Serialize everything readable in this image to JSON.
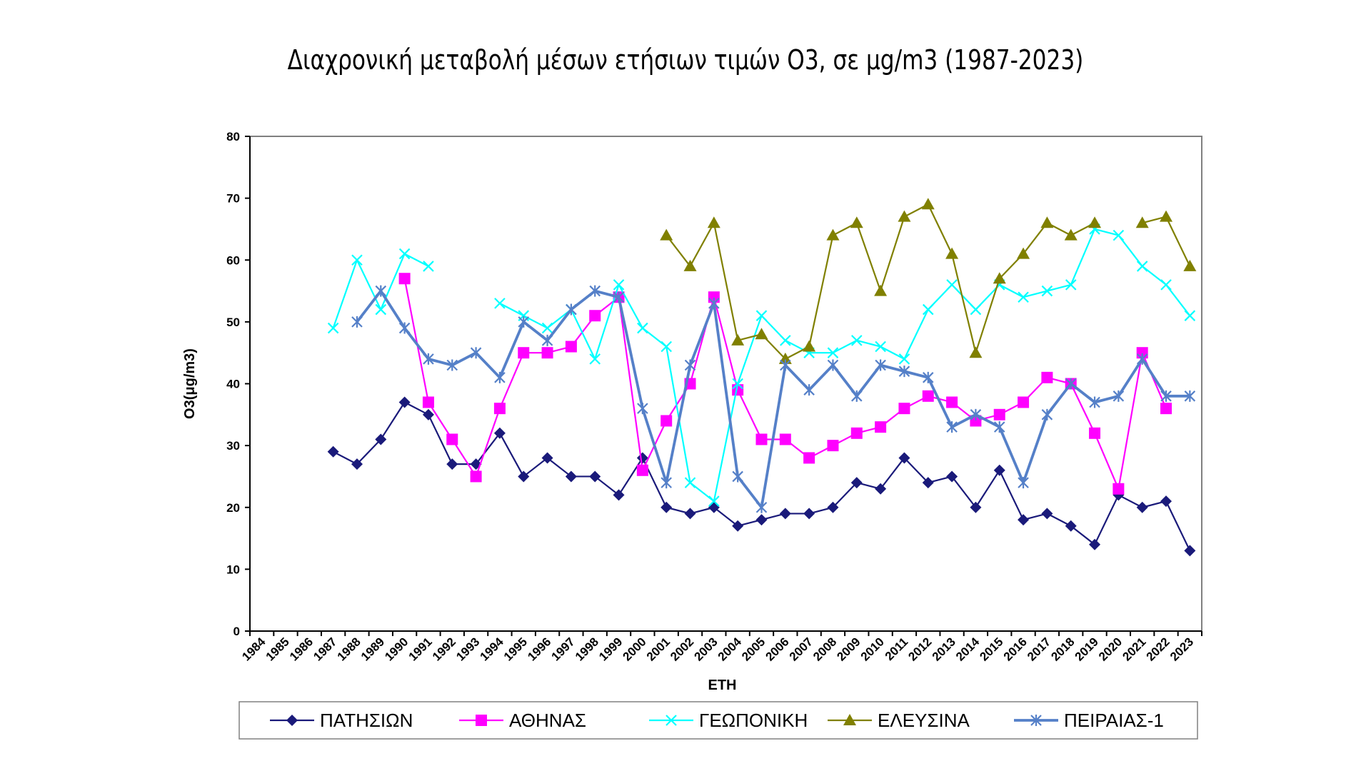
{
  "title": "Διαχρονική μεταβολή μέσων ετήσιων τιμών O3, σε μg/m3 (1987-2023)",
  "chart_data": {
    "type": "line",
    "title": "Διαχρονική μεταβολή μέσων ετήσιων τιμών O3, σε μg/m3 (1987-2023)",
    "xlabel": "ΕΤΗ",
    "ylabel": "O3(μg/m3)",
    "ylim": [
      0,
      80
    ],
    "yticks": [
      "0",
      "10",
      "20",
      "30",
      "40",
      "50",
      "60",
      "70",
      "80"
    ],
    "grid": false,
    "legend_position": "bottom",
    "categories": [
      "1984",
      "1985",
      "1986",
      "1987",
      "1988",
      "1989",
      "1990",
      "1991",
      "1992",
      "1993",
      "1994",
      "1995",
      "1996",
      "1997",
      "1998",
      "1999",
      "2000",
      "2001",
      "2002",
      "2003",
      "2004",
      "2005",
      "2006",
      "2007",
      "2008",
      "2009",
      "2010",
      "2011",
      "2012",
      "2013",
      "2014",
      "2015",
      "2016",
      "2017",
      "2018",
      "2019",
      "2020",
      "2021",
      "2022",
      "2023"
    ],
    "series": [
      {
        "name": "ΠΑΤΗΣΙΩΝ",
        "color": "#1a1a7a",
        "marker": "diamond",
        "values": [
          null,
          null,
          null,
          29,
          27,
          31,
          37,
          35,
          27,
          27,
          32,
          25,
          28,
          25,
          25,
          22,
          28,
          20,
          19,
          20,
          17,
          18,
          19,
          19,
          20,
          24,
          23,
          28,
          24,
          25,
          20,
          26,
          18,
          19,
          17,
          14,
          22,
          20,
          21,
          13
        ]
      },
      {
        "name": "ΑΘΗΝΑΣ",
        "color": "#ff00ff",
        "marker": "square",
        "values": [
          null,
          null,
          null,
          null,
          null,
          null,
          57,
          37,
          31,
          25,
          36,
          45,
          45,
          46,
          51,
          54,
          26,
          34,
          40,
          54,
          39,
          31,
          31,
          28,
          30,
          32,
          33,
          36,
          38,
          37,
          34,
          35,
          37,
          41,
          40,
          32,
          23,
          45,
          36,
          null
        ]
      },
      {
        "name": "ΓΕΩΠΟΝΙΚΗ",
        "color": "#00ffff",
        "marker": "x",
        "values": [
          null,
          null,
          null,
          49,
          60,
          52,
          61,
          59,
          null,
          null,
          53,
          51,
          49,
          52,
          44,
          56,
          49,
          46,
          24,
          21,
          40,
          51,
          47,
          45,
          45,
          47,
          46,
          44,
          52,
          56,
          52,
          56,
          54,
          55,
          56,
          65,
          64,
          59,
          56,
          51
        ]
      },
      {
        "name": "ΕΛΕΥΣΙΝΑ",
        "color": "#808000",
        "marker": "triangle",
        "values": [
          null,
          null,
          null,
          null,
          null,
          null,
          null,
          null,
          null,
          null,
          null,
          null,
          null,
          null,
          null,
          null,
          null,
          64,
          59,
          66,
          47,
          48,
          44,
          46,
          64,
          66,
          55,
          67,
          69,
          61,
          45,
          57,
          61,
          66,
          64,
          66,
          null,
          66,
          67,
          59
        ]
      },
      {
        "name": "ΠΕΙΡΑΙΑΣ-1",
        "color": "#5580c8",
        "marker": "star",
        "values": [
          null,
          null,
          null,
          null,
          50,
          55,
          49,
          44,
          43,
          45,
          41,
          50,
          47,
          52,
          55,
          54,
          36,
          24,
          43,
          53,
          25,
          20,
          43,
          39,
          43,
          38,
          43,
          42,
          41,
          33,
          35,
          33,
          24,
          35,
          40,
          37,
          38,
          44,
          38,
          38
        ]
      }
    ]
  }
}
